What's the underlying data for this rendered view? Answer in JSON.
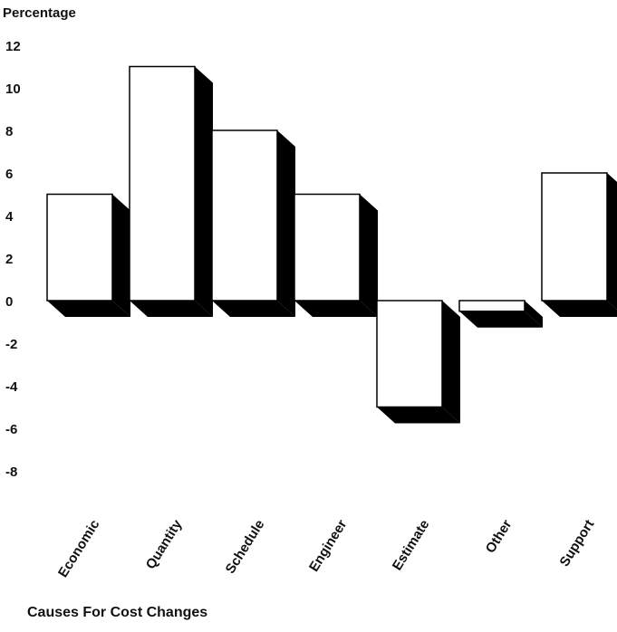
{
  "chart_data": {
    "type": "bar",
    "title": "",
    "ylabel": "Percentage",
    "xlabel": "Causes For Cost Changes",
    "categories": [
      "Economic",
      "Quantity",
      "Schedule",
      "Engineer",
      "Estimate",
      "Other",
      "Support"
    ],
    "values": [
      5,
      11,
      8,
      5,
      -5,
      -0.5,
      6
    ],
    "ylim": [
      -8,
      12
    ],
    "yticks": [
      12,
      10,
      8,
      6,
      4,
      2,
      0,
      -2,
      -4,
      -6,
      -8
    ],
    "grid": false,
    "style": "3d"
  }
}
